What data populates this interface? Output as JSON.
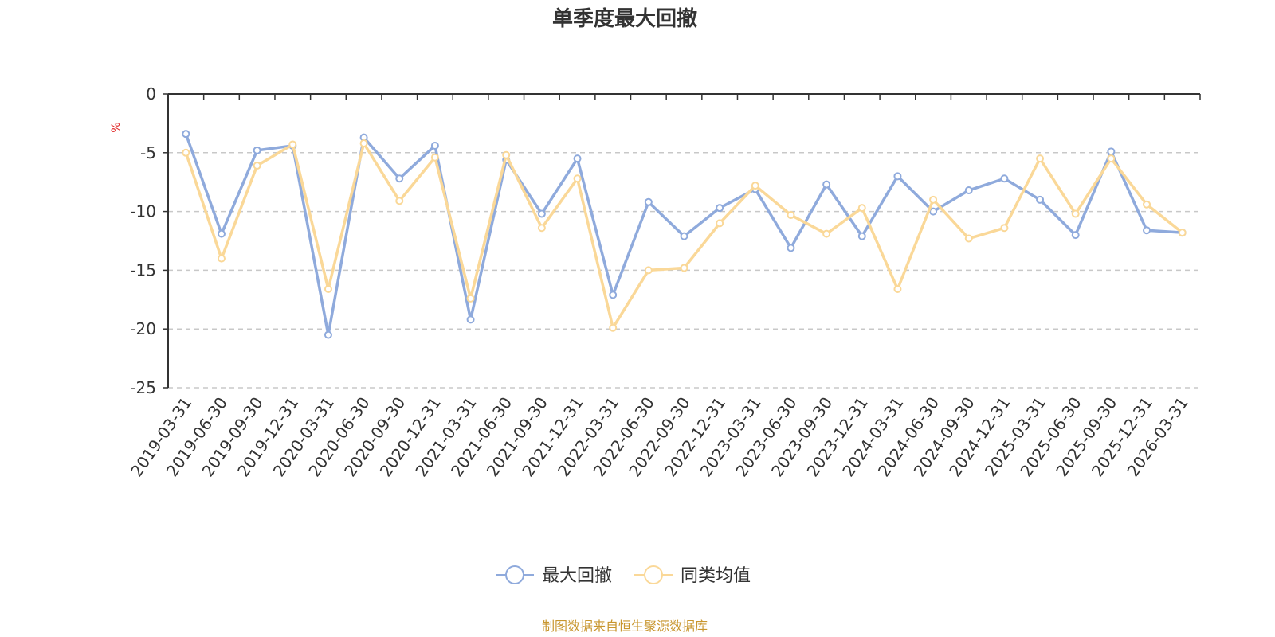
{
  "chart_data": {
    "type": "line",
    "title": "单季度最大回撤",
    "ylabel": "%",
    "xlabel": "",
    "ylim": [
      -25,
      0
    ],
    "yticks": [
      0,
      -5,
      -10,
      -15,
      -20,
      -25
    ],
    "grid": true,
    "legend_position": "bottom-center",
    "categories": [
      "2019-03-31",
      "2019-06-30",
      "2019-09-30",
      "2019-12-31",
      "2020-03-31",
      "2020-06-30",
      "2020-09-30",
      "2020-12-31",
      "2021-03-31",
      "2021-06-30",
      "2021-09-30",
      "2021-12-31",
      "2022-03-31",
      "2022-06-30",
      "2022-09-30",
      "2022-12-31",
      "2023-03-31",
      "2023-06-30",
      "2023-09-30",
      "2023-12-31",
      "2024-03-31",
      "2024-06-30",
      "2024-09-30",
      "2024-12-31",
      "2025-03-31",
      "2025-06-30",
      "2025-09-30",
      "2025-12-31",
      "2026-03-31"
    ],
    "series": [
      {
        "name": "最大回撤",
        "color": "#8faadc",
        "values": [
          -3.4,
          -11.9,
          -4.8,
          -4.4,
          -20.5,
          -3.7,
          -7.2,
          -4.4,
          -19.2,
          -5.6,
          -10.2,
          -5.5,
          -17.1,
          -9.2,
          -12.1,
          -9.7,
          -8.1,
          -13.1,
          -7.7,
          -12.1,
          -7.0,
          -10.0,
          -8.2,
          -7.2,
          -9.0,
          -12.0,
          -4.9,
          -11.6,
          -11.8
        ]
      },
      {
        "name": "同类均值",
        "color": "#fad898",
        "values": [
          -5.0,
          -14.0,
          -6.1,
          -4.3,
          -16.6,
          -4.2,
          -9.1,
          -5.4,
          -17.4,
          -5.2,
          -11.4,
          -7.2,
          -19.9,
          -15.0,
          -14.8,
          -11.0,
          -7.8,
          -10.3,
          -11.9,
          -9.7,
          -16.6,
          -9.0,
          -12.3,
          -11.4,
          -5.5,
          -10.2,
          -5.5,
          -9.4,
          -11.8
        ]
      }
    ]
  },
  "footer": {
    "source": "制图数据来自恒生聚源数据库"
  }
}
